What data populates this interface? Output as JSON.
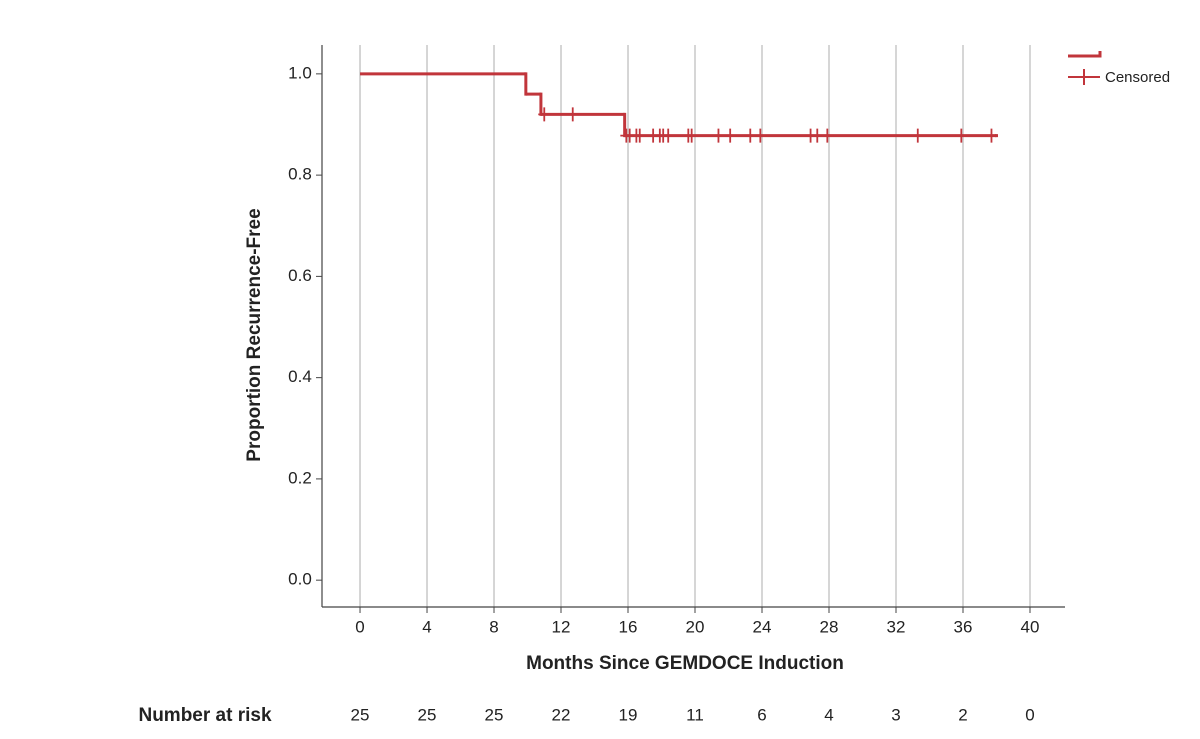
{
  "chart_data": {
    "type": "km",
    "xlabel": "Months Since GEMDOCE Induction",
    "ylabel": "Proportion Recurrence-Free",
    "xlim": [
      -2.27,
      42.09
    ],
    "ylim": [
      -0.053,
      1.057
    ],
    "xticks": [
      0,
      4,
      8,
      12,
      16,
      20,
      24,
      28,
      32,
      36,
      40
    ],
    "yticks": [
      {
        "value": 0,
        "label": "0.0"
      },
      0.2,
      0.4,
      0.6,
      0.8,
      {
        "value": 1,
        "label": "1.0"
      }
    ],
    "grid": "x",
    "color": "#c1353b",
    "legend": "top-right",
    "series": [
      {
        "x": [
          0,
          9.9,
          10.8,
          15.8,
          38.0
        ],
        "values": [
          1,
          0.96,
          0.92,
          0.878,
          0.878
        ]
      },
      {
        "name": "Censored",
        "x": [
          11.0,
          12.7,
          15.9,
          16.1,
          16.5,
          16.7,
          17.5,
          17.9,
          18.1,
          18.4,
          19.6,
          19.8,
          21.4,
          22.1,
          23.3,
          23.9,
          26.9,
          27.3,
          27.9,
          33.3,
          35.9,
          37.7
        ],
        "values": [
          0.92,
          0.92,
          0.878,
          0.878,
          0.878,
          0.878,
          0.878,
          0.878,
          0.878,
          0.878,
          0.878,
          0.878,
          0.878,
          0.878,
          0.878,
          0.878,
          0.878,
          0.878,
          0.878,
          0.878,
          0.878,
          0.878
        ]
      }
    ],
    "at_risk": {
      "label": "Number at risk",
      "values": [
        25,
        25,
        25,
        22,
        19,
        11,
        6,
        4,
        3,
        2,
        0
      ]
    }
  }
}
